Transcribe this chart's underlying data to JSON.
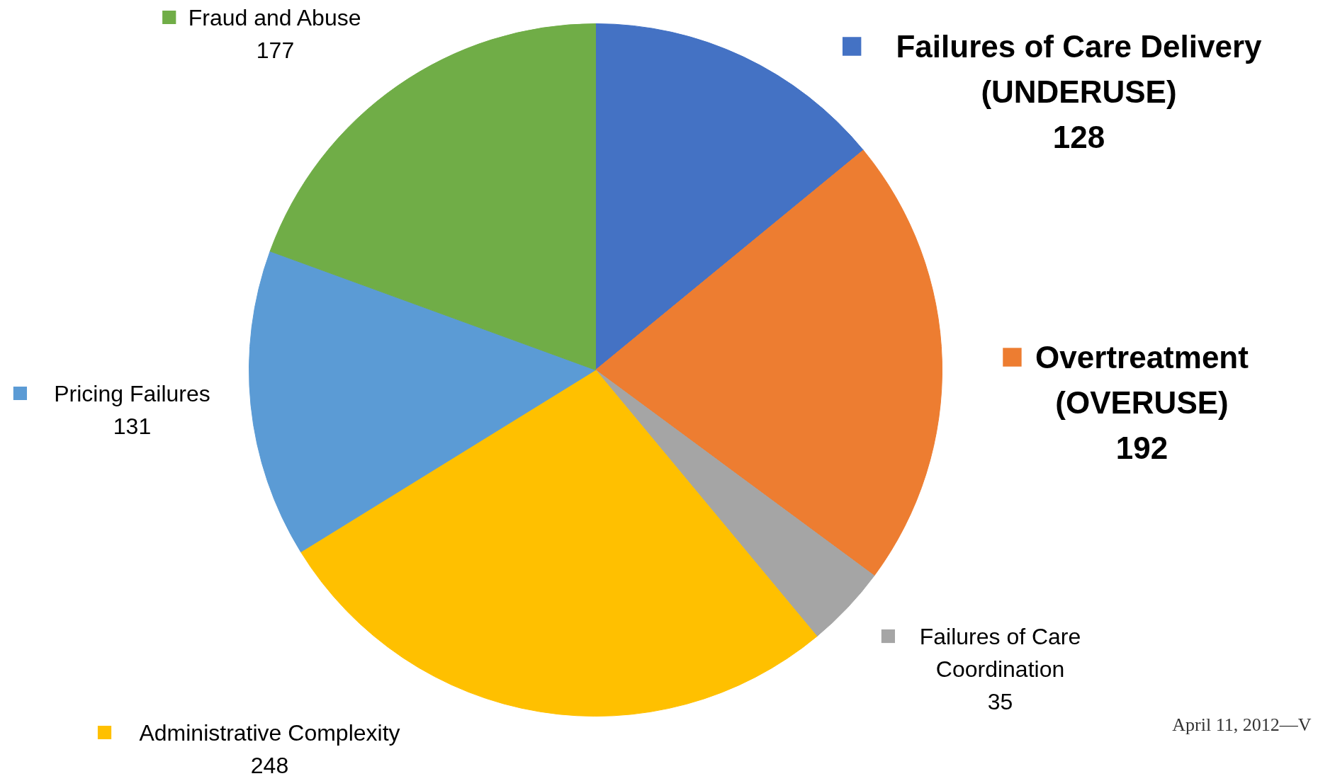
{
  "chart_data": {
    "type": "pie",
    "categories": [
      "Failures of Care Delivery (UNDERUSE)",
      "Overtreatment (OVERUSE)",
      "Failures of Care Coordination",
      "Administrative Complexity",
      "Pricing Failures",
      "Fraud and Abuse"
    ],
    "values": [
      128,
      192,
      35,
      248,
      131,
      177
    ],
    "colors": [
      "#4472c4",
      "#ed7d31",
      "#a5a5a5",
      "#ffc000",
      "#5b9bd5",
      "#70ad47"
    ],
    "data_labels": true,
    "legend": "right",
    "annotations": [
      "April 11, 2012—V"
    ]
  }
}
